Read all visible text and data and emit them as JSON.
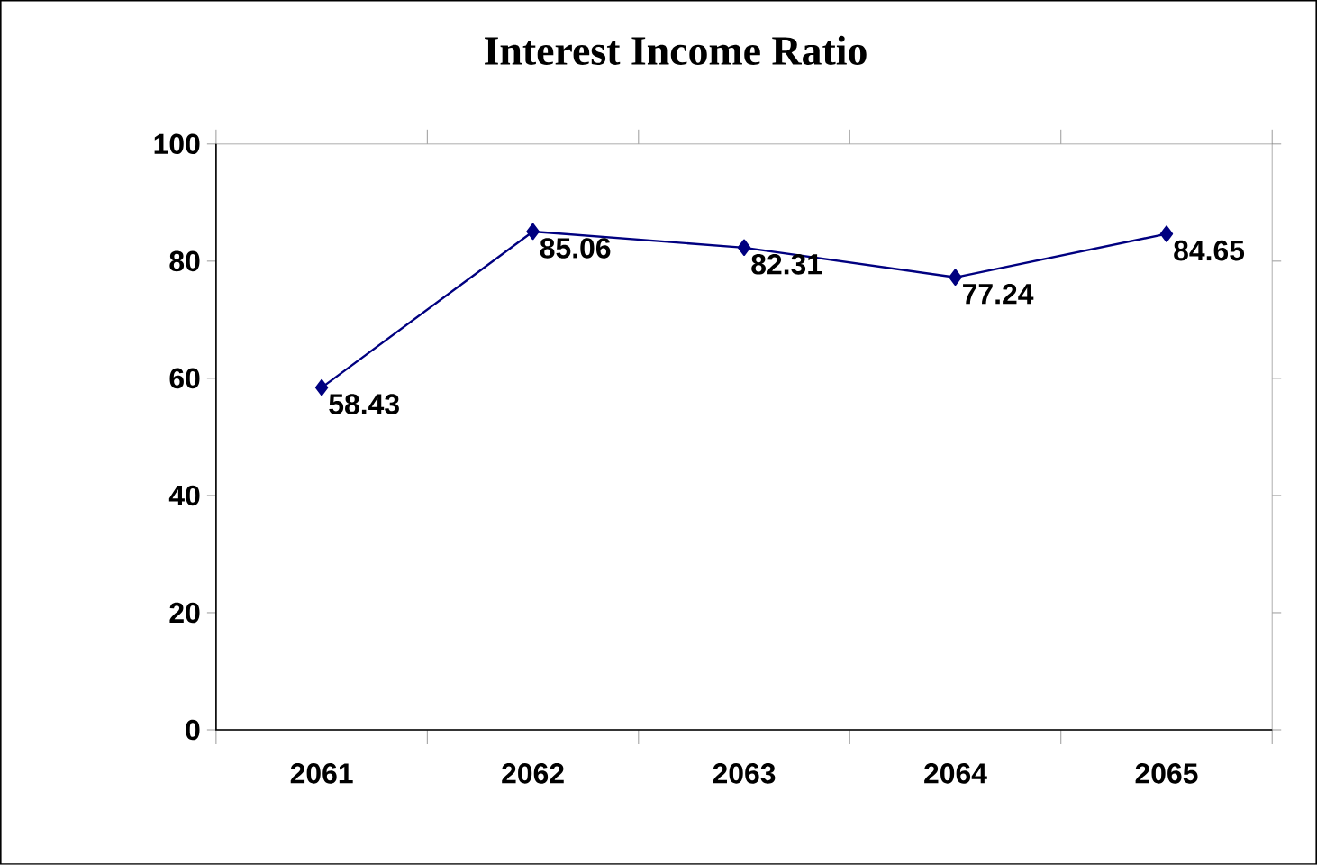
{
  "chart_data": {
    "type": "line",
    "title": "Interest Income Ratio",
    "categories": [
      "2061",
      "2062",
      "2063",
      "2064",
      "2065"
    ],
    "values": [
      58.43,
      85.06,
      82.31,
      77.24,
      84.65
    ],
    "color": "#000080",
    "marker": "diamond",
    "data_labels": true,
    "ylim": [
      0,
      100
    ],
    "yticks": [
      0,
      20,
      40,
      60,
      80,
      100
    ],
    "grid": false
  }
}
